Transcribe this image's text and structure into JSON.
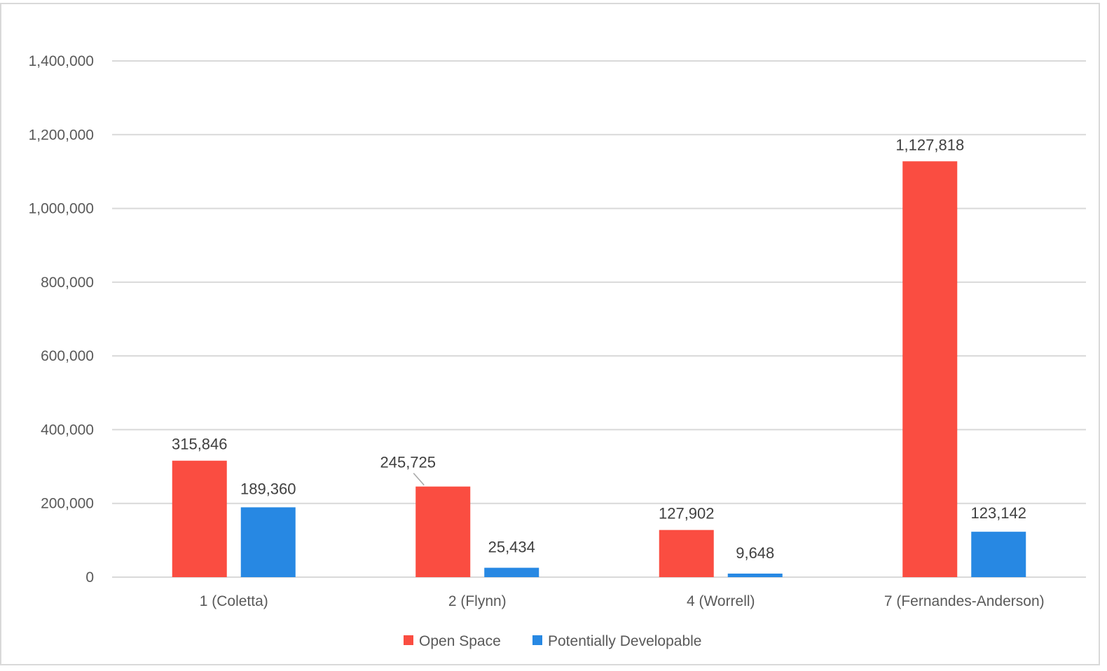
{
  "chart_data": {
    "type": "bar",
    "title": "",
    "xlabel": "",
    "ylabel": "",
    "categories": [
      "1 (Coletta)",
      "2 (Flynn)",
      "4 (Worrell)",
      "7 (Fernandes-Anderson)"
    ],
    "series": [
      {
        "name": "Open Space",
        "color": "#fa4d41",
        "values": [
          315846,
          245725,
          127902,
          1127818
        ],
        "labels": [
          "315,846",
          "245,725",
          "127,902",
          "1,127,818"
        ]
      },
      {
        "name": "Potentially Developable",
        "color": "#2788e3",
        "values": [
          189360,
          25434,
          9648,
          123142
        ],
        "labels": [
          "189,360",
          "25,434",
          "9,648",
          "123,142"
        ]
      }
    ],
    "ylim": [
      0,
      1400000
    ],
    "yticks": [
      0,
      200000,
      400000,
      600000,
      800000,
      1000000,
      1200000,
      1400000
    ],
    "ytick_labels": [
      "0",
      "200,000",
      "400,000",
      "600,000",
      "800,000",
      "1,000,000",
      "1,200,000",
      "1,400,000"
    ],
    "grid": true,
    "legend_position": "bottom"
  }
}
